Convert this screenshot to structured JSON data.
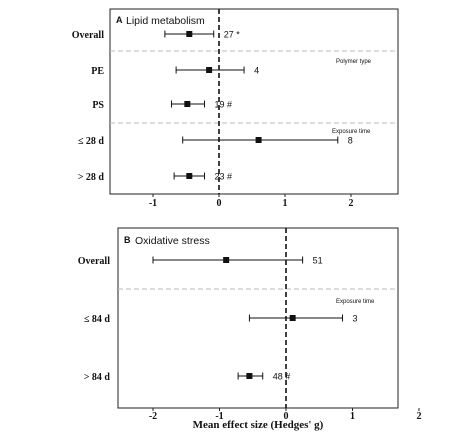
{
  "chart_data": [
    {
      "type": "forest",
      "panel": "A",
      "title": "Lipid metabolism",
      "xlim": [
        -2.6,
        2.7
      ],
      "xticks": [
        -1,
        0,
        1,
        2
      ],
      "xtick_labels": [
        "-1",
        "0",
        "1",
        "2"
      ],
      "reference_line": 0,
      "rows": [
        {
          "label": "Overall",
          "estimate": -0.45,
          "ci": [
            -0.82,
            -0.08
          ],
          "annotation": "27 *"
        },
        {
          "label": "PE",
          "estimate": -0.15,
          "ci": [
            -0.65,
            0.38
          ],
          "annotation": "4"
        },
        {
          "label": "PS",
          "estimate": -0.48,
          "ci": [
            -0.72,
            -0.22
          ],
          "annotation": "19 #"
        },
        {
          "label": "≤ 28 d",
          "estimate": 0.6,
          "ci": [
            -0.55,
            1.8
          ],
          "annotation": "8"
        },
        {
          "label": "> 28 d",
          "estimate": -0.45,
          "ci": [
            -0.68,
            -0.22
          ],
          "annotation": "23 #"
        }
      ],
      "group_notes": [
        "Polymer type",
        "Exposure time"
      ]
    },
    {
      "type": "forest",
      "panel": "B",
      "title": "Oxidative stress",
      "xlim": [
        -2.6,
        2.6
      ],
      "xticks": [
        -2,
        -1,
        0,
        1,
        2
      ],
      "xtick_labels": [
        "-2",
        "-1",
        "0",
        "1",
        "2"
      ],
      "reference_line": 0,
      "xlabel": "Mean effect size (Hedges' g)",
      "rows": [
        {
          "label": "Overall",
          "estimate": -0.9,
          "ci": [
            -2.0,
            0.25
          ],
          "annotation": "51"
        },
        {
          "label": "≤ 84 d",
          "estimate": 0.1,
          "ci": [
            -0.55,
            0.85
          ],
          "annotation": "3"
        },
        {
          "label": "> 84 d",
          "estimate": -0.55,
          "ci": [
            -0.72,
            -0.35
          ],
          "annotation": "48 #"
        }
      ],
      "group_notes": [
        "Exposure time"
      ]
    }
  ]
}
